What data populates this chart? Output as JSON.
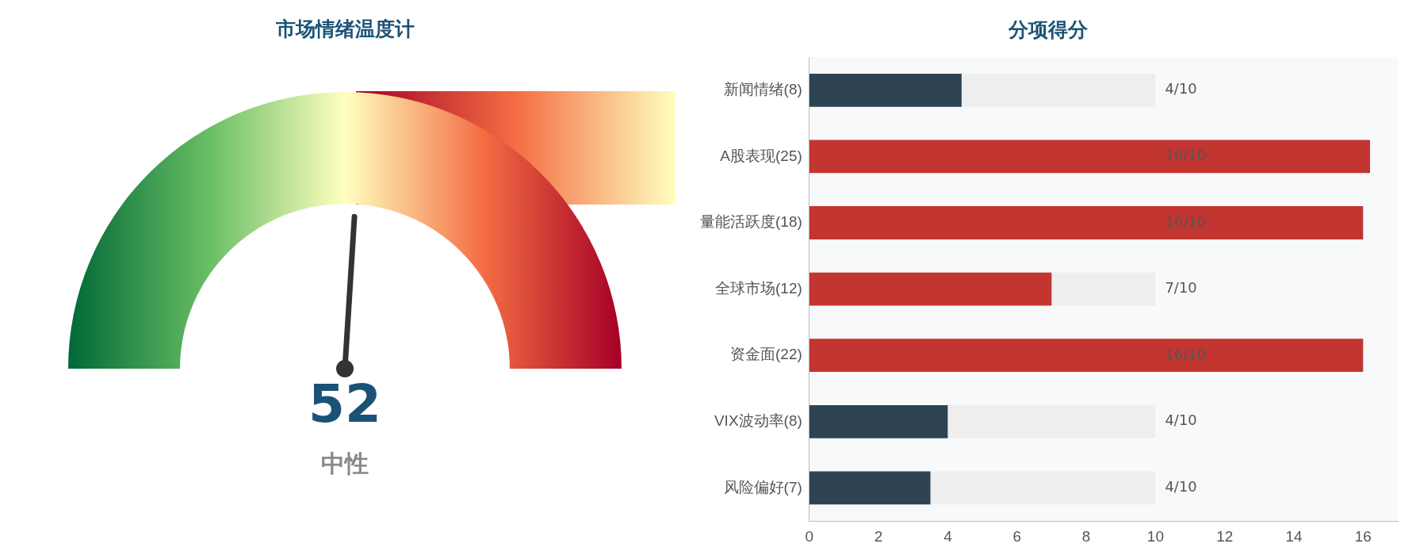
{
  "chart_data": [
    {
      "type": "other",
      "title": "市场情绪温度计",
      "values": [
        52
      ],
      "data_labels": true,
      "annotations": [
        "中性"
      ]
    },
    {
      "type": "bar",
      "orientation": "horizontal",
      "stacked": true,
      "title": "分项得分",
      "categories": [
        "新闻情绪(8)",
        "A股表现(25)",
        "量能活跃度(18)",
        "全球市场(12)",
        "资金面(22)",
        "VIX波动率(8)",
        "风险偏好(7)"
      ],
      "series": [
        {
          "colors": [
            "#2e4453",
            "#c23531",
            "#c23531",
            "#c23531",
            "#c23531",
            "#2e4453",
            "#2e4453"
          ],
          "values": [
            4.4,
            16.2,
            16,
            7,
            16,
            4,
            3.5
          ]
        },
        {
          "color": "#eeeeee",
          "values": [
            5.6,
            null,
            null,
            3,
            null,
            6,
            6.5
          ]
        }
      ],
      "annotations": [
        "4/10",
        "16/10",
        "16/10",
        "7/10",
        "16/10",
        "4/10",
        "4/10"
      ],
      "xlim": [
        0,
        17
      ],
      "xticks": [
        0,
        2,
        4,
        6,
        8,
        10,
        12,
        14,
        16
      ],
      "grid": false,
      "legend": false
    }
  ]
}
